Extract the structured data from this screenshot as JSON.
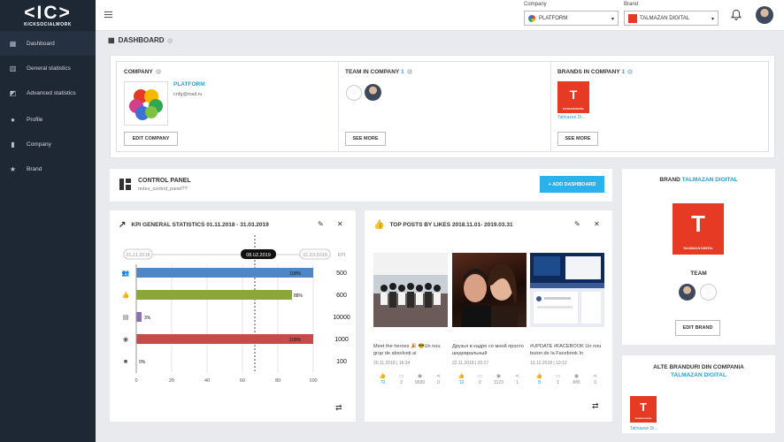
{
  "sidebar": {
    "logo_mark": "<IC>",
    "logo_sub": "KICKSOCIALWORK",
    "items": [
      {
        "label": "Dashboard",
        "icon": "grid-icon"
      },
      {
        "label": "General statistics",
        "icon": "bar-chart-icon"
      },
      {
        "label": "Advanced statistics",
        "icon": "line-chart-icon"
      },
      {
        "label": "Profile",
        "icon": "person-icon"
      },
      {
        "label": "Company",
        "icon": "building-icon"
      },
      {
        "label": "Brand",
        "icon": "star-icon"
      }
    ]
  },
  "topbar": {
    "company_label": "Company",
    "company_value": "PLATFORM",
    "brand_label": "Brand",
    "brand_value": "TALMAZAN DIGITAL"
  },
  "page": {
    "title": "DASHBOARD"
  },
  "company": {
    "heading": "COMPANY",
    "name": "PLATFORM",
    "email": "cnfg@mail.ru",
    "edit_button": "EDIT COMPANY"
  },
  "team": {
    "heading": "TEAM IN COMPANY",
    "count": "1",
    "see_more": "SEE MORE"
  },
  "brands": {
    "heading": "BRANDS IN COMPANY",
    "count": "1",
    "brand_name": "Talmazan Di...",
    "see_more": "SEE MORE"
  },
  "control_panel": {
    "title": "CONTROL PANEL",
    "note": "notes_control_panel??",
    "add_button": "+ ADD DASHBOARD"
  },
  "kpi": {
    "title": "KPI GENERAL STATISTICS 01.11.2018 - 31.03.2019",
    "range_start": "01.11.2018",
    "range_mid": "08.02.2019",
    "range_end": "31.03.2019",
    "kpi_label": "KPI"
  },
  "chart_data": {
    "type": "bar",
    "orientation": "horizontal",
    "categories": [
      "people-icon",
      "thumbs-up-icon",
      "comment-icon",
      "eye-icon",
      "video-icon"
    ],
    "values": [
      100,
      88,
      3,
      100,
      0
    ],
    "value_labels": [
      "100%",
      "88%",
      "3%",
      "100%",
      "0%"
    ],
    "kpi_targets": [
      "500",
      "600",
      "10000",
      "1000",
      "100"
    ],
    "colors": [
      "#4f86c6",
      "#8aa737",
      "#8f6cc0",
      "#c64b4b",
      "#999999"
    ],
    "xlim": [
      0,
      100
    ],
    "xticks": [
      "0",
      "20",
      "40",
      "60",
      "80",
      "100"
    ],
    "marker_value": 67,
    "grid": true
  },
  "top_posts": {
    "title": "TOP POSTS BY LIKES 2018.11.01- 2019.03.31",
    "posts": [
      {
        "text": "Meet the heroes 🎉 😎Un nou grup de absolveți ai",
        "date": "20.11.2018 | 16:34",
        "likes": "70",
        "comments": "2",
        "views": "9699",
        "shares": "0"
      },
      {
        "text": "Друзья в кадре со мной просто шедевральный",
        "date": "22.11.2018 | 20:27",
        "likes": "12",
        "comments": "0",
        "views": "1123",
        "shares": "1"
      },
      {
        "text": "#UPDATE #FACEBOOK Un nou buton de la Facebook în",
        "date": "13.12.2018 | 10:12",
        "likes": "8",
        "comments": "1",
        "views": "845",
        "shares": "0"
      }
    ]
  },
  "brand_card": {
    "label": "BRAND",
    "name": "TALMAZAN DIGITAL",
    "team_label": "TEAM",
    "edit_button": "EDIT BRAND"
  },
  "alt_brands": {
    "title": "ALTE BRANDURI DIN COMPANIA",
    "company": "TALMAZAN DIGITAL",
    "brand_name": "Talmazan Di..."
  },
  "logo_text": {
    "td": "TALMAZAN DIGITAL"
  }
}
